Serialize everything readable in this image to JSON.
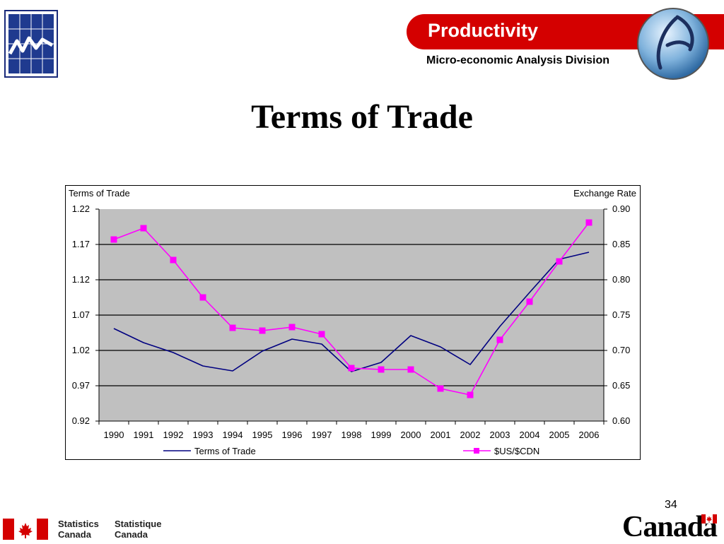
{
  "header": {
    "banner_title": "Productivity",
    "banner_subtitle": "Micro-economic Analysis Division"
  },
  "slide": {
    "title": "Terms of Trade",
    "page_number": "34"
  },
  "footer": {
    "agency_en_line1": "Statistics",
    "agency_en_line2": "Canada",
    "agency_fr_line1": "Statistique",
    "agency_fr_line2": "Canada",
    "wordmark": "Canada"
  },
  "colors": {
    "banner_red": "#d40000",
    "plot_background": "#c0c0c0",
    "terms_of_trade_line": "#000080",
    "exchange_rate_line": "#ff00ff"
  },
  "icons": [
    "statcan-chart-logo-icon",
    "globe-logo-icon",
    "canada-flag-icon",
    "canada-wordmark-flag-icon"
  ],
  "chart_data": {
    "type": "line",
    "left_axis_label": "Terms of Trade",
    "right_axis_label": "Exchange Rate",
    "categories": [
      "1990",
      "1991",
      "1992",
      "1993",
      "1994",
      "1995",
      "1996",
      "1997",
      "1998",
      "1999",
      "2000",
      "2001",
      "2002",
      "2003",
      "2004",
      "2005",
      "2006"
    ],
    "left_ylim": [
      0.92,
      1.22
    ],
    "left_ticks": [
      "1.22",
      "1.17",
      "1.12",
      "1.07",
      "1.02",
      "0.97",
      "0.92"
    ],
    "right_ylim": [
      0.6,
      0.9
    ],
    "right_ticks": [
      "0.90",
      "0.85",
      "0.80",
      "0.75",
      "0.70",
      "0.65",
      "0.60"
    ],
    "grid": true,
    "legend_position": "bottom",
    "series": [
      {
        "name": "Terms of Trade",
        "axis": "left",
        "color": "#000080",
        "marker": "none",
        "values": [
          1.051,
          1.031,
          1.017,
          0.998,
          0.991,
          1.019,
          1.036,
          1.029,
          0.99,
          1.003,
          1.041,
          1.025,
          1.0,
          1.054,
          1.102,
          1.149,
          1.159
        ]
      },
      {
        "name": "$US/$CDN",
        "axis": "right",
        "color": "#ff00ff",
        "marker": "square",
        "values": [
          0.857,
          0.873,
          0.828,
          0.775,
          0.732,
          0.728,
          0.733,
          0.723,
          0.675,
          0.673,
          0.673,
          0.646,
          0.637,
          0.715,
          0.769,
          0.826,
          0.881
        ]
      }
    ]
  }
}
